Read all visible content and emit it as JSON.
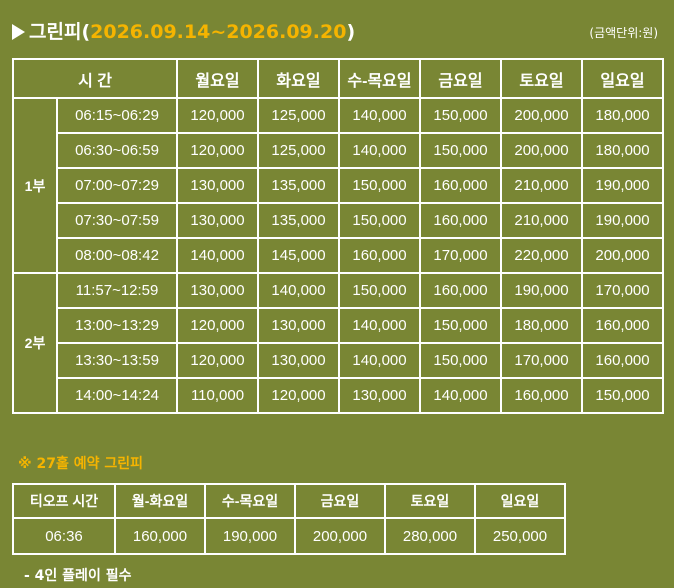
{
  "header": {
    "title_prefix": "그린피(",
    "title_dates": "2026.09.14~2026.09.20",
    "title_suffix": ")",
    "unit_note": "(금액단위:원)"
  },
  "main_table": {
    "headers": [
      "시  간",
      "월요일",
      "화요일",
      "수-목요일",
      "금요일",
      "토요일",
      "일요일"
    ],
    "groups": [
      {
        "period": "1부",
        "rows": [
          {
            "time": "06:15~06:29",
            "prices": [
              "120,000",
              "125,000",
              "140,000",
              "150,000",
              "200,000",
              "180,000"
            ]
          },
          {
            "time": "06:30~06:59",
            "prices": [
              "120,000",
              "125,000",
              "140,000",
              "150,000",
              "200,000",
              "180,000"
            ]
          },
          {
            "time": "07:00~07:29",
            "prices": [
              "130,000",
              "135,000",
              "150,000",
              "160,000",
              "210,000",
              "190,000"
            ]
          },
          {
            "time": "07:30~07:59",
            "prices": [
              "130,000",
              "135,000",
              "150,000",
              "160,000",
              "210,000",
              "190,000"
            ]
          },
          {
            "time": "08:00~08:42",
            "prices": [
              "140,000",
              "145,000",
              "160,000",
              "170,000",
              "220,000",
              "200,000"
            ]
          }
        ]
      },
      {
        "period": "2부",
        "rows": [
          {
            "time": "11:57~12:59",
            "prices": [
              "130,000",
              "140,000",
              "150,000",
              "160,000",
              "190,000",
              "170,000"
            ]
          },
          {
            "time": "13:00~13:29",
            "prices": [
              "120,000",
              "130,000",
              "140,000",
              "150,000",
              "180,000",
              "160,000"
            ]
          },
          {
            "time": "13:30~13:59",
            "prices": [
              "120,000",
              "130,000",
              "140,000",
              "150,000",
              "170,000",
              "160,000"
            ]
          },
          {
            "time": "14:00~14:24",
            "prices": [
              "110,000",
              "120,000",
              "130,000",
              "140,000",
              "160,000",
              "150,000"
            ]
          }
        ]
      }
    ]
  },
  "reservation_note": "※ 27홀 예약 그린피",
  "reservation_table": {
    "headers": [
      "티오프 시간",
      "월-화요일",
      "수-목요일",
      "금요일",
      "토요일",
      "일요일"
    ],
    "row": [
      "06:36",
      "160,000",
      "190,000",
      "200,000",
      "280,000",
      "250,000"
    ]
  },
  "footnote": "- 4인 플레이 필수",
  "colors": {
    "background": "#798634",
    "accent": "#f5b400",
    "text": "#ffffff"
  }
}
